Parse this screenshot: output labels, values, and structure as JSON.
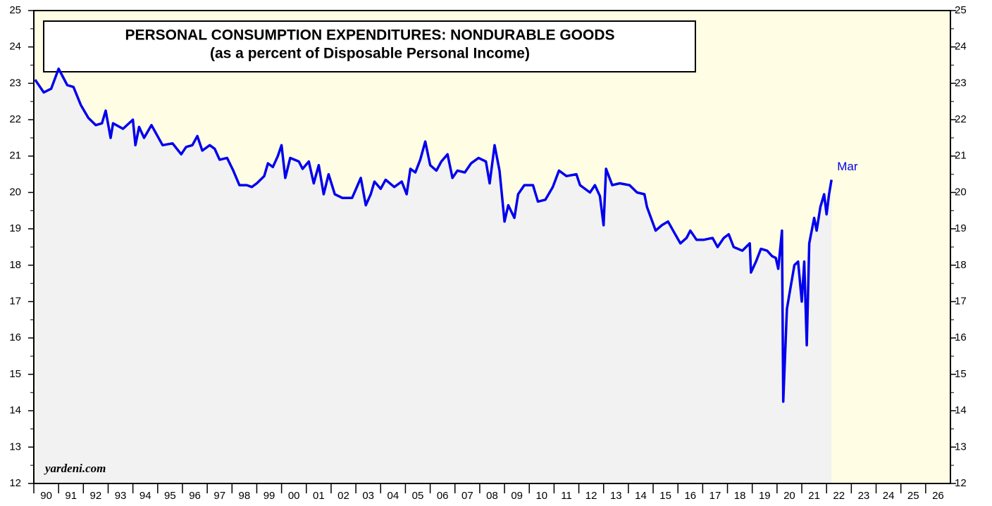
{
  "chart_data": {
    "type": "line",
    "title": "PERSONAL CONSUMPTION EXPENDITURES: NONDURABLE GOODS",
    "subtitle": "(as a percent of Disposable Personal Income)",
    "source": "yardeni.com",
    "annotation": "Mar",
    "xlim": [
      1990,
      2027
    ],
    "ylim": [
      12,
      25
    ],
    "yticks": [
      12,
      13,
      14,
      15,
      16,
      17,
      18,
      19,
      20,
      21,
      22,
      23,
      24,
      25
    ],
    "xticks": [
      {
        "value": 1990,
        "label": "90"
      },
      {
        "value": 1991,
        "label": "91"
      },
      {
        "value": 1992,
        "label": "92"
      },
      {
        "value": 1993,
        "label": "93"
      },
      {
        "value": 1994,
        "label": "94"
      },
      {
        "value": 1995,
        "label": "95"
      },
      {
        "value": 1996,
        "label": "96"
      },
      {
        "value": 1997,
        "label": "97"
      },
      {
        "value": 1998,
        "label": "98"
      },
      {
        "value": 1999,
        "label": "99"
      },
      {
        "value": 2000,
        "label": "00"
      },
      {
        "value": 2001,
        "label": "01"
      },
      {
        "value": 2002,
        "label": "02"
      },
      {
        "value": 2003,
        "label": "03"
      },
      {
        "value": 2004,
        "label": "04"
      },
      {
        "value": 2005,
        "label": "05"
      },
      {
        "value": 2006,
        "label": "06"
      },
      {
        "value": 2007,
        "label": "07"
      },
      {
        "value": 2008,
        "label": "08"
      },
      {
        "value": 2009,
        "label": "09"
      },
      {
        "value": 2010,
        "label": "10"
      },
      {
        "value": 2011,
        "label": "11"
      },
      {
        "value": 2012,
        "label": "12"
      },
      {
        "value": 2013,
        "label": "13"
      },
      {
        "value": 2014,
        "label": "14"
      },
      {
        "value": 2015,
        "label": "15"
      },
      {
        "value": 2016,
        "label": "16"
      },
      {
        "value": 2017,
        "label": "17"
      },
      {
        "value": 2018,
        "label": "18"
      },
      {
        "value": 2019,
        "label": "19"
      },
      {
        "value": 2020,
        "label": "20"
      },
      {
        "value": 2021,
        "label": "21"
      },
      {
        "value": 2022,
        "label": "22"
      },
      {
        "value": 2023,
        "label": "23"
      },
      {
        "value": 2024,
        "label": "24"
      },
      {
        "value": 2025,
        "label": "25"
      },
      {
        "value": 2026,
        "label": "26"
      }
    ],
    "background": "#fffde3",
    "area_color": "#f2f2f2",
    "x": [
      1990.05,
      1990.4,
      1990.7,
      1991.0,
      1991.35,
      1991.6,
      1991.9,
      1992.2,
      1992.5,
      1992.75,
      1992.9,
      1993.1,
      1993.2,
      1993.6,
      1994.0,
      1994.1,
      1994.25,
      1994.45,
      1994.75,
      1995.2,
      1995.6,
      1995.95,
      1996.15,
      1996.4,
      1996.6,
      1996.8,
      1997.1,
      1997.3,
      1997.5,
      1997.8,
      1998.05,
      1998.3,
      1998.6,
      1998.8,
      1999.0,
      1999.3,
      1999.45,
      1999.65,
      1999.85,
      2000.0,
      2000.15,
      2000.35,
      2000.7,
      2000.85,
      2001.1,
      2001.3,
      2001.5,
      2001.7,
      2001.9,
      2002.15,
      2002.45,
      2002.85,
      2003.2,
      2003.4,
      2003.6,
      2003.75,
      2004.0,
      2004.2,
      2004.55,
      2004.85,
      2005.05,
      2005.2,
      2005.4,
      2005.6,
      2005.8,
      2006.0,
      2006.25,
      2006.45,
      2006.7,
      2006.9,
      2007.1,
      2007.4,
      2007.65,
      2007.95,
      2008.25,
      2008.4,
      2008.6,
      2008.8,
      2009.0,
      2009.15,
      2009.4,
      2009.55,
      2009.8,
      2010.15,
      2010.35,
      2010.65,
      2010.95,
      2011.2,
      2011.5,
      2011.9,
      2012.05,
      2012.45,
      2012.65,
      2012.85,
      2013.0,
      2013.1,
      2013.35,
      2013.65,
      2014.05,
      2014.35,
      2014.65,
      2014.75,
      2015.1,
      2015.35,
      2015.6,
      2015.85,
      2016.1,
      2016.35,
      2016.5,
      2016.75,
      2017.05,
      2017.4,
      2017.6,
      2017.85,
      2018.05,
      2018.25,
      2018.6,
      2018.9,
      2018.95,
      2019.15,
      2019.35,
      2019.6,
      2019.8,
      2019.95,
      2020.05,
      2020.2,
      2020.25,
      2020.4,
      2020.5,
      2020.7,
      2020.85,
      2021.0,
      2021.1,
      2021.2,
      2021.3,
      2021.5,
      2021.6,
      2021.75,
      2021.9,
      2022.0,
      2022.1,
      2022.2
    ],
    "series": [
      {
        "name": "Nondurable goods",
        "color": "#0000ee",
        "values": [
          23.1,
          22.75,
          22.85,
          23.4,
          22.95,
          22.9,
          22.4,
          22.05,
          21.85,
          21.9,
          22.25,
          21.5,
          21.9,
          21.75,
          22.0,
          21.3,
          21.8,
          21.5,
          21.85,
          21.3,
          21.35,
          21.05,
          21.25,
          21.3,
          21.55,
          21.15,
          21.3,
          21.2,
          20.9,
          20.95,
          20.6,
          20.2,
          20.2,
          20.15,
          20.25,
          20.45,
          20.8,
          20.7,
          21.0,
          21.3,
          20.4,
          20.95,
          20.85,
          20.65,
          20.85,
          20.25,
          20.75,
          19.95,
          20.5,
          19.95,
          19.85,
          19.85,
          20.4,
          19.65,
          19.95,
          20.3,
          20.1,
          20.35,
          20.15,
          20.3,
          19.95,
          20.65,
          20.55,
          20.9,
          21.4,
          20.75,
          20.6,
          20.85,
          21.05,
          20.4,
          20.6,
          20.55,
          20.8,
          20.95,
          20.85,
          20.25,
          21.3,
          20.6,
          19.2,
          19.65,
          19.3,
          19.95,
          20.2,
          20.2,
          19.75,
          19.8,
          20.15,
          20.6,
          20.45,
          20.5,
          20.2,
          20.0,
          20.2,
          19.9,
          19.1,
          20.65,
          20.2,
          20.25,
          20.2,
          20.0,
          19.95,
          19.6,
          18.95,
          19.1,
          19.2,
          18.9,
          18.6,
          18.75,
          18.95,
          18.7,
          18.7,
          18.75,
          18.5,
          18.75,
          18.85,
          18.5,
          18.4,
          18.6,
          17.8,
          18.1,
          18.45,
          18.4,
          18.25,
          18.2,
          17.9,
          18.95,
          14.25,
          16.8,
          17.2,
          18.0,
          18.1,
          17.0,
          18.1,
          15.8,
          18.6,
          19.3,
          18.95,
          19.6,
          19.95,
          19.4,
          19.95,
          20.35
        ]
      }
    ]
  }
}
